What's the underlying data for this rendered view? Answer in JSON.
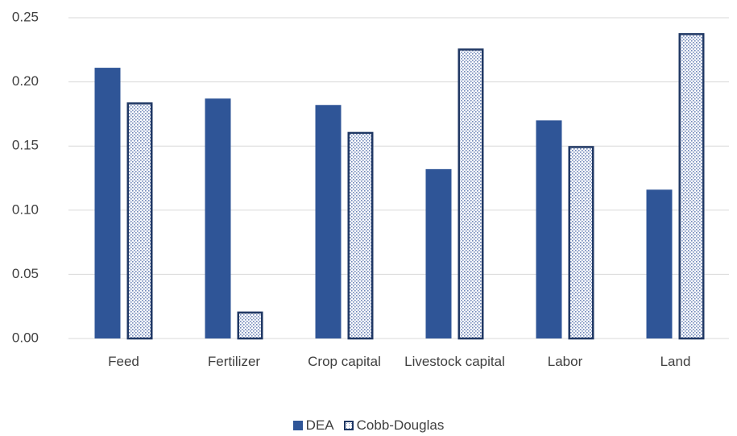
{
  "chart_data": {
    "type": "bar",
    "categories": [
      "Feed",
      "Fertilizer",
      "Crop capital",
      "Livestock capital",
      "Labor",
      "Land"
    ],
    "series": [
      {
        "name": "DEA",
        "color": "#2f5597",
        "values": [
          0.211,
          0.187,
          0.182,
          0.132,
          0.17,
          0.116
        ]
      },
      {
        "name": "Cobb-Douglas",
        "color": "#203864",
        "values": [
          0.184,
          0.021,
          0.161,
          0.226,
          0.15,
          0.238
        ]
      }
    ],
    "ylim": [
      0,
      0.25
    ],
    "yticks": [
      {
        "value": 0,
        "label": "0.00"
      },
      {
        "value": 0.05,
        "label": "0.05"
      },
      {
        "value": 0.1,
        "label": "0.10"
      },
      {
        "value": 0.15,
        "label": "0.15"
      },
      {
        "value": 0.2,
        "label": "0.20"
      },
      {
        "value": 0.25,
        "label": "0.25"
      }
    ],
    "grid": true
  }
}
